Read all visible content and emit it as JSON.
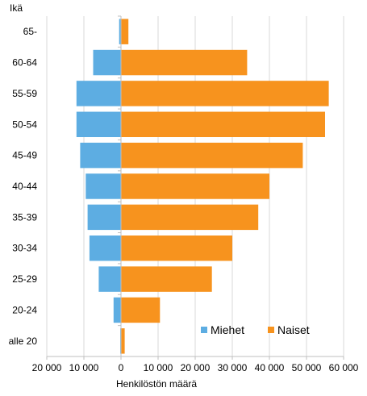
{
  "chart_data": {
    "type": "bar",
    "orientation": "horizontal",
    "ylabel": "Ikä",
    "xlabel": "Henkilöstön määrä",
    "categories": [
      "65-",
      "60-64",
      "55-59",
      "50-54",
      "45-49",
      "40-44",
      "35-39",
      "30-34",
      "25-29",
      "20-24",
      "alle 20"
    ],
    "series": [
      {
        "name": "Miehet",
        "color": "#5dade2",
        "values": [
          -500,
          -7500,
          -12000,
          -12000,
          -11000,
          -9500,
          -9000,
          -8500,
          -6000,
          -2000,
          -200
        ]
      },
      {
        "name": "Naiset",
        "color": "#f7931e",
        "values": [
          2000,
          34000,
          56000,
          55000,
          49000,
          40000,
          37000,
          30000,
          24500,
          10500,
          1000
        ]
      }
    ],
    "xlim": [
      -20000,
      60000
    ],
    "xticks": [
      -20000,
      -10000,
      0,
      10000,
      20000,
      30000,
      40000,
      50000,
      60000
    ],
    "xtick_labels": [
      "20 000",
      "10 000",
      "0",
      "10 000",
      "20 000",
      "30 000",
      "40 000",
      "50 000",
      "60 000"
    ],
    "grid": "vertical",
    "legend": "bottom-right"
  }
}
